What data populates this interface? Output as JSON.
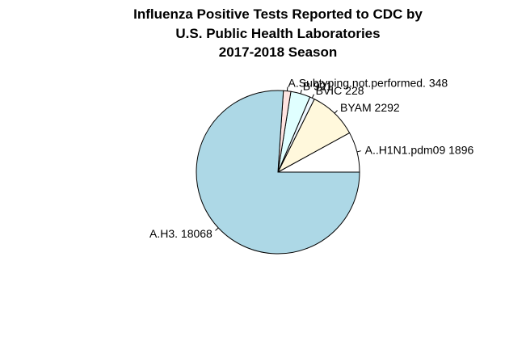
{
  "chart_data": {
    "type": "pie",
    "title_lines": [
      "Influenza Positive Tests Reported to CDC by",
      "U.S. Public Health Laboratories",
      "2017-2018 Season"
    ],
    "slices": [
      {
        "label": "A..H1N1.pdm09 1896",
        "value": 1896,
        "color": "#ffffff"
      },
      {
        "label": "BYAM 2292",
        "value": 2292,
        "color": "#fff8dc"
      },
      {
        "label": "BVIC 228",
        "value": 228,
        "color": "#f0f8ff"
      },
      {
        "label": "B 921",
        "value": 921,
        "color": "#e0ffff"
      },
      {
        "label": "A.Subtyping.not.performed. 348",
        "value": 348,
        "color": "#ffe4e1"
      },
      {
        "label": "A.H3. 18068",
        "value": 18068,
        "color": "#add8e6"
      }
    ],
    "legend": "none"
  }
}
